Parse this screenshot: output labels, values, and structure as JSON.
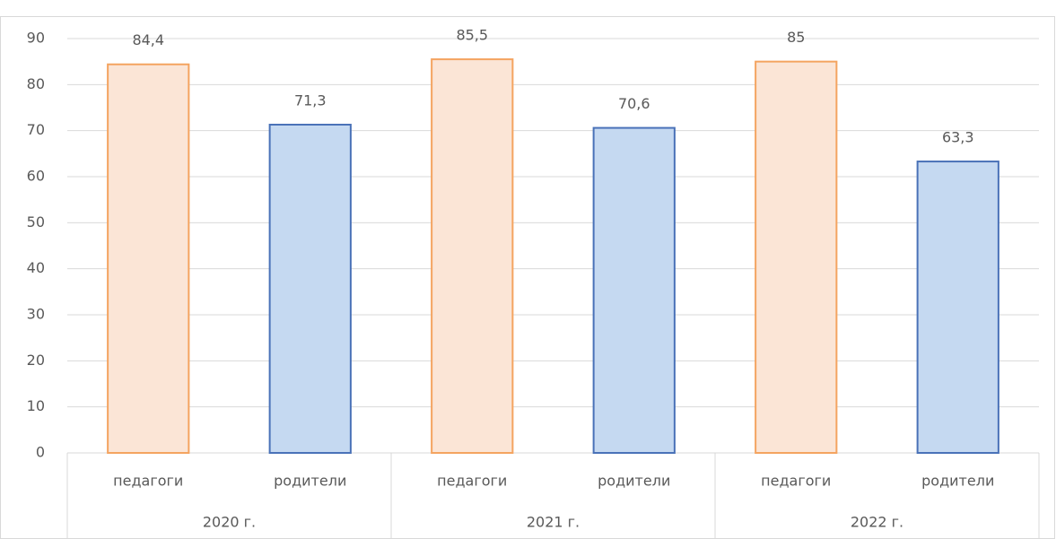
{
  "chart_data": {
    "type": "bar",
    "categories": [
      "педагоги",
      "родители",
      "педагоги",
      "родители",
      "педагоги",
      "родители"
    ],
    "groups": [
      "2020 г.",
      "2021 г.",
      "2022 г."
    ],
    "values": [
      84.4,
      71.3,
      85.5,
      70.6,
      85,
      63.3
    ],
    "value_labels": [
      "84,4",
      "71,3",
      "85,5",
      "70,6",
      "85",
      "63,3"
    ],
    "colors": [
      "#fbe5d6",
      "#c5d9f1",
      "#fbe5d6",
      "#c5d9f1",
      "#fbe5d6",
      "#c5d9f1"
    ],
    "edge_colors": [
      "#f4a460",
      "#4a72b8",
      "#f4a460",
      "#4a72b8",
      "#f4a460",
      "#4a72b8"
    ],
    "ylim": [
      0,
      90
    ],
    "yticks": [
      0,
      10,
      20,
      30,
      40,
      50,
      60,
      70,
      80,
      90
    ],
    "grid": true
  }
}
